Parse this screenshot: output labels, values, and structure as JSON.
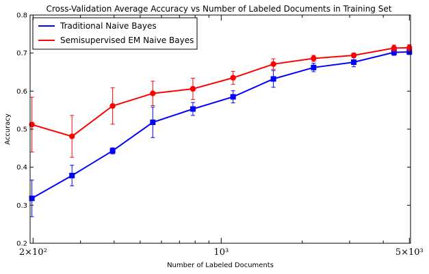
{
  "chart_data": {
    "type": "line",
    "title": "Cross-Validation Average Accuracy vs Number of Labeled Documents in Training Set",
    "xlabel": "Number of Labeled Documents",
    "ylabel": "Accuracy",
    "xscale": "log",
    "xlim": [
      195,
      5050
    ],
    "ylim": [
      0.2,
      0.8
    ],
    "yticks": [
      0.2,
      0.3,
      0.4,
      0.5,
      0.6,
      0.7,
      0.8
    ],
    "ytick_labels": [
      "0.2",
      "0.3",
      "0.4",
      "0.5",
      "0.6",
      "0.7",
      "0.8"
    ],
    "xticks": [
      200,
      1000,
      5000
    ],
    "xtick_labels": [
      "2×10²",
      "10³",
      "5×10³"
    ],
    "grid": false,
    "legend_position": "top-left",
    "series": [
      {
        "name": "Traditional Naive Bayes",
        "color": "#0000ff",
        "marker": "square",
        "x": [
          198,
          279,
          395,
          557,
          785,
          1107,
          1563,
          2204,
          3108,
          4384,
          5000
        ],
        "y": [
          0.318,
          0.378,
          0.443,
          0.518,
          0.553,
          0.585,
          0.632,
          0.662,
          0.676,
          0.702,
          0.703
        ],
        "error": [
          0.048,
          0.027,
          0.008,
          0.04,
          0.017,
          0.016,
          0.022,
          0.011,
          0.012,
          0.008,
          0.007
        ]
      },
      {
        "name": "Semisupervised EM Naive Bayes",
        "color": "#ff0000",
        "marker": "circle",
        "x": [
          198,
          279,
          395,
          557,
          785,
          1107,
          1563,
          2204,
          3108,
          4384,
          5000
        ],
        "y": [
          0.512,
          0.481,
          0.561,
          0.594,
          0.606,
          0.635,
          0.671,
          0.686,
          0.694,
          0.713,
          0.714
        ],
        "error": [
          0.072,
          0.055,
          0.048,
          0.032,
          0.028,
          0.017,
          0.014,
          0.008,
          0.006,
          0.008,
          0.008
        ]
      }
    ]
  }
}
